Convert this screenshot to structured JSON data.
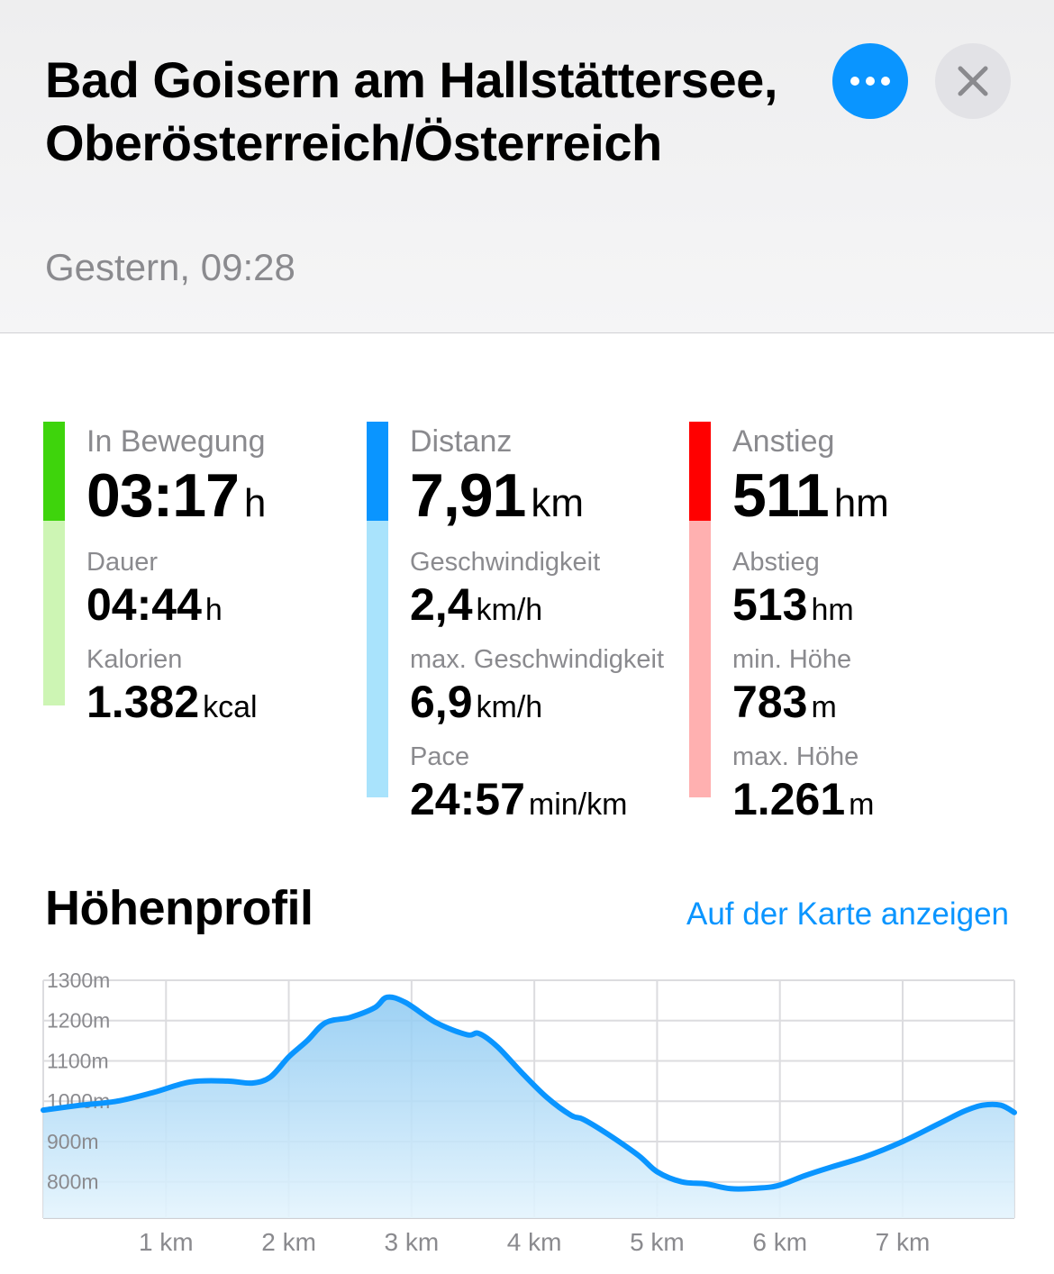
{
  "header": {
    "title": "Bad Goisern am Hallstättersee, Oberösterreich/Österreich",
    "subtitle": "Gestern, 09:28",
    "more_icon": "ellipsis-icon",
    "close_icon": "close-icon"
  },
  "colors": {
    "accent": "#0a95ff",
    "green": "#3ed40c",
    "green_light": "#cdf5b4",
    "blue": "#0a95ff",
    "blue_light": "#a9e3fc",
    "red": "#ff0000",
    "red_light": "#ffb0b0"
  },
  "stats": {
    "movement": {
      "label": "In Bewegung",
      "value": "03:17",
      "unit": "h",
      "rows": [
        {
          "label": "Dauer",
          "value": "04:44",
          "unit": "h"
        },
        {
          "label": "Kalorien",
          "value": "1.382",
          "unit": "kcal"
        }
      ]
    },
    "distance": {
      "label": "Distanz",
      "value": "7,91",
      "unit": "km",
      "rows": [
        {
          "label": "Geschwindigkeit",
          "value": "2,4",
          "unit": "km/h"
        },
        {
          "label": "max. Geschwindigkeit",
          "value": "6,9",
          "unit": "km/h"
        },
        {
          "label": "Pace",
          "value": "24:57",
          "unit": "min/km"
        }
      ]
    },
    "ascent": {
      "label": "Anstieg",
      "value": "511",
      "unit": "hm",
      "rows": [
        {
          "label": "Abstieg",
          "value": "513",
          "unit": "hm"
        },
        {
          "label": "min. Höhe",
          "value": "783",
          "unit": "m"
        },
        {
          "label": "max. Höhe",
          "value": "1.261",
          "unit": "m"
        }
      ]
    }
  },
  "profile": {
    "title": "Höhenprofil",
    "map_link": "Auf der Karte anzeigen"
  },
  "chart_data": {
    "type": "area",
    "xlabel": "",
    "ylabel": "",
    "xlim": [
      0,
      7.91
    ],
    "ylim": [
      710,
      1300
    ],
    "y_ticks": [
      {
        "value": 1300,
        "label": "1300m"
      },
      {
        "value": 1200,
        "label": "1200m"
      },
      {
        "value": 1100,
        "label": "1100m"
      },
      {
        "value": 1000,
        "label": "1000m"
      },
      {
        "value": 900,
        "label": "900m"
      },
      {
        "value": 800,
        "label": "800m"
      }
    ],
    "x_ticks": [
      {
        "value": 1,
        "label": "1 km"
      },
      {
        "value": 2,
        "label": "2 km"
      },
      {
        "value": 3,
        "label": "3 km"
      },
      {
        "value": 4,
        "label": "4 km"
      },
      {
        "value": 5,
        "label": "5 km"
      },
      {
        "value": 6,
        "label": "6 km"
      },
      {
        "value": 7,
        "label": "7 km"
      }
    ],
    "grid": true,
    "series": [
      {
        "x": [
          0,
          0.3,
          0.6,
          0.9,
          1.2,
          1.5,
          1.7,
          1.85,
          2.0,
          2.15,
          2.3,
          2.5,
          2.7,
          2.8,
          2.95,
          3.2,
          3.45,
          3.55,
          3.7,
          3.9,
          4.1,
          4.3,
          4.4,
          4.6,
          4.85,
          5.0,
          5.2,
          5.4,
          5.6,
          5.85,
          6.0,
          6.2,
          6.4,
          6.7,
          7.0,
          7.3,
          7.5,
          7.65,
          7.8,
          7.91
        ],
        "values": [
          978,
          990,
          1000,
          1022,
          1048,
          1050,
          1045,
          1060,
          1110,
          1150,
          1195,
          1208,
          1232,
          1258,
          1245,
          1195,
          1165,
          1168,
          1135,
          1070,
          1010,
          965,
          955,
          918,
          865,
          825,
          800,
          795,
          783,
          785,
          792,
          815,
          835,
          863,
          900,
          945,
          975,
          990,
          990,
          972
        ]
      }
    ]
  }
}
